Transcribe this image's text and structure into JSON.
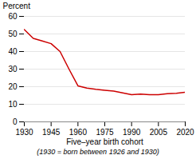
{
  "chart_data": {
    "type": "line",
    "ylabel": "Percent",
    "xlabel": "Five–year birth cohort",
    "annotations": [
      "(1930 = born between 1926 and 1930)"
    ],
    "x": [
      1930,
      1935,
      1940,
      1945,
      1950,
      1955,
      1960,
      1965,
      1970,
      1975,
      1980,
      1985,
      1990,
      1995,
      2000,
      2005,
      2010,
      2015,
      2020
    ],
    "values": [
      52.5,
      47.5,
      46.0,
      44.5,
      40.0,
      30.0,
      20.5,
      19.2,
      18.5,
      18.0,
      17.5,
      16.5,
      15.5,
      15.8,
      15.5,
      15.5,
      16.0,
      16.2,
      16.8
    ],
    "color": "#cc0000",
    "xlim": [
      1930,
      2020
    ],
    "ylim": [
      0,
      60
    ],
    "xticks": [
      1930,
      1945,
      1960,
      1975,
      1990,
      2005,
      2020
    ],
    "yticks": [
      0,
      10,
      20,
      30,
      40,
      50,
      60
    ],
    "grid": "y"
  }
}
